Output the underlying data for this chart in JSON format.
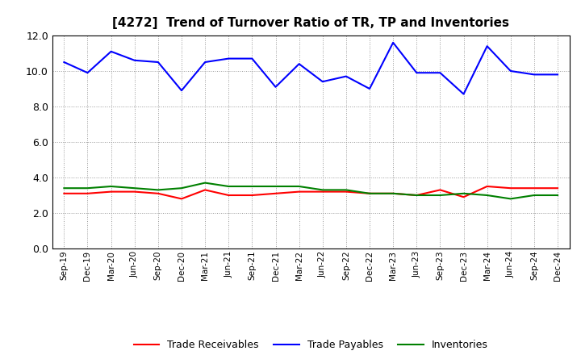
{
  "title": "[4272]  Trend of Turnover Ratio of TR, TP and Inventories",
  "labels": [
    "Sep-19",
    "Dec-19",
    "Mar-20",
    "Jun-20",
    "Sep-20",
    "Dec-20",
    "Mar-21",
    "Jun-21",
    "Sep-21",
    "Dec-21",
    "Mar-22",
    "Jun-22",
    "Sep-22",
    "Dec-22",
    "Mar-23",
    "Jun-23",
    "Sep-23",
    "Dec-23",
    "Mar-24",
    "Jun-24",
    "Sep-24",
    "Dec-24"
  ],
  "trade_receivables": [
    3.1,
    3.1,
    3.2,
    3.2,
    3.1,
    2.8,
    3.3,
    3.0,
    3.0,
    3.1,
    3.2,
    3.2,
    3.2,
    3.1,
    3.1,
    3.0,
    3.3,
    2.9,
    3.5,
    3.4,
    3.4,
    3.4
  ],
  "trade_payables": [
    10.5,
    9.9,
    11.1,
    10.6,
    10.5,
    8.9,
    10.5,
    10.7,
    10.7,
    9.1,
    10.4,
    9.4,
    9.7,
    9.0,
    11.6,
    9.9,
    9.9,
    8.7,
    11.4,
    10.0,
    9.8,
    9.8
  ],
  "inventories": [
    3.4,
    3.4,
    3.5,
    3.4,
    3.3,
    3.4,
    3.7,
    3.5,
    3.5,
    3.5,
    3.5,
    3.3,
    3.3,
    3.1,
    3.1,
    3.0,
    3.0,
    3.1,
    3.0,
    2.8,
    3.0,
    3.0
  ],
  "ylim": [
    0.0,
    12.0
  ],
  "yticks": [
    0.0,
    2.0,
    4.0,
    6.0,
    8.0,
    10.0,
    12.0
  ],
  "color_tr": "#ff0000",
  "color_tp": "#0000ff",
  "color_inv": "#008000",
  "legend_labels": [
    "Trade Receivables",
    "Trade Payables",
    "Inventories"
  ],
  "bg_color": "#ffffff",
  "grid_color": "#999999"
}
